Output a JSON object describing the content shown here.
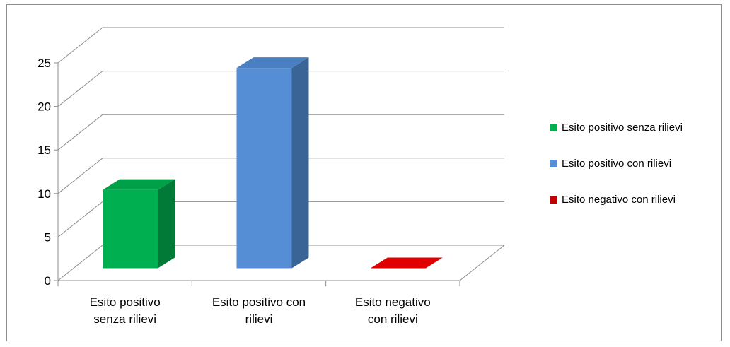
{
  "chart_data": {
    "type": "bar",
    "subtype": "3d-column",
    "title": "",
    "xlabel": "",
    "ylabel": "",
    "categories": [
      [
        "Esito positivo",
        "senza rilievi"
      ],
      [
        "Esito positivo con",
        "rilievi"
      ],
      [
        "Esito negativo",
        "con rilievi"
      ]
    ],
    "values": [
      9,
      23,
      0
    ],
    "colors": {
      "front": [
        "#00b050",
        "#558ed5",
        "#c00000"
      ],
      "side": [
        "#007a36",
        "#3a6396",
        "#8a0000"
      ],
      "top": [
        "#00a049",
        "#4a7fc1",
        "#e00000"
      ]
    },
    "ylim": [
      0,
      25
    ],
    "yticks": [
      "0",
      "5",
      "10",
      "15",
      "20",
      "25"
    ],
    "grid": true,
    "legend": {
      "position": "right",
      "entries": [
        {
          "label": "Esito positivo senza rilievi",
          "color": "#00b050"
        },
        {
          "label": "Esito positivo con rilievi",
          "color": "#558ed5"
        },
        {
          "label": "Esito negativo con rilievi",
          "color": "#c00000"
        }
      ]
    }
  }
}
